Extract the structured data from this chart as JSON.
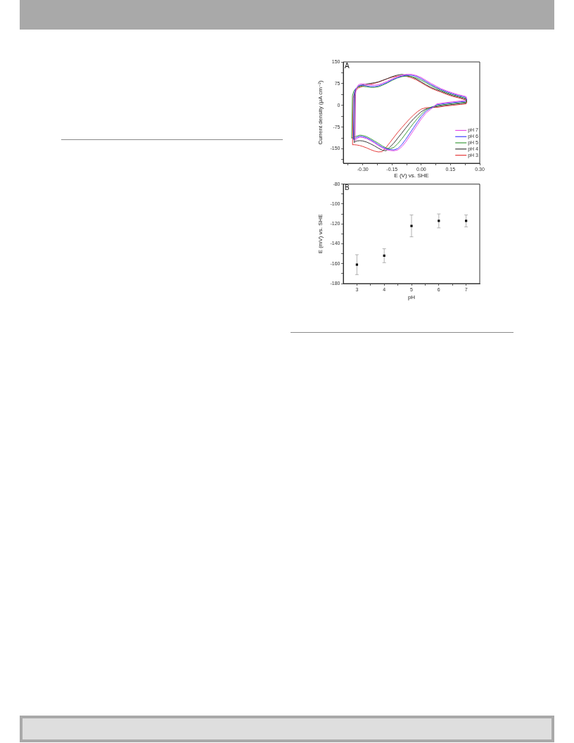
{
  "chart_data": [
    {
      "type": "line",
      "annotations": [
        "A"
      ],
      "xlabel": "E (V) vs. SHE",
      "ylabel": "Current density (μA cm⁻²)",
      "xlim": [
        -0.4,
        0.3
      ],
      "xticks": [
        {
          "value": -0.375,
          "label": null
        },
        {
          "value": -0.3,
          "label": "-0.30"
        },
        {
          "value": -0.225,
          "label": null
        },
        -0.15,
        {
          "value": -0.075,
          "label": null
        },
        {
          "value": 0,
          "label": "0.00"
        },
        {
          "value": 0.075,
          "label": null
        },
        0.15,
        {
          "value": 0.225,
          "label": null
        },
        {
          "value": 0.3,
          "label": "0.30"
        }
      ],
      "ylim": [
        -200,
        150
      ],
      "yticks": [
        {
          "value": -187.5,
          "label": null
        },
        -150,
        {
          "value": -112.5,
          "label": null
        },
        -75,
        {
          "value": -37.5,
          "label": null
        },
        0,
        {
          "value": 37.5,
          "label": null
        },
        75,
        {
          "value": 112.5,
          "label": null
        },
        150
      ],
      "legend": "bottom right",
      "marker": "none",
      "line_style": "solid",
      "series": [
        {
          "name": "pH 7",
          "color": "#e64de6",
          "x": [
            -0.339,
            -0.337,
            -0.334,
            -0.329,
            -0.322,
            -0.31,
            -0.295,
            -0.28,
            -0.26,
            -0.24,
            -0.22,
            -0.2,
            -0.175,
            -0.15,
            -0.125,
            -0.1,
            -0.075,
            -0.05,
            -0.025,
            0,
            0.025,
            0.05,
            0.075,
            0.1,
            0.13,
            0.16,
            0.19,
            0.215,
            0.23,
            0.233
          ],
          "values": [
            -121,
            37,
            55,
            63,
            71,
            74,
            74,
            72,
            70,
            70,
            71,
            76,
            83,
            91,
            98,
            104,
            107,
            107,
            103,
            96,
            86,
            76,
            67,
            58,
            50,
            43,
            37,
            33,
            30,
            22
          ]
        },
        {
          "name": "pH 6",
          "color": "#3d3dff",
          "x": [
            -0.348,
            -0.345,
            -0.34,
            -0.333,
            -0.322,
            -0.31,
            -0.295,
            -0.28,
            -0.26,
            -0.24,
            -0.22,
            -0.2,
            -0.175,
            -0.15,
            -0.125,
            -0.1,
            -0.075,
            -0.05,
            -0.025,
            0,
            0.025,
            0.05,
            0.075,
            0.1,
            0.13,
            0.16,
            0.19,
            0.215,
            0.23,
            0.233
          ],
          "values": [
            -117,
            35,
            52,
            60,
            67,
            70,
            69,
            67,
            65,
            65,
            67,
            72,
            79,
            88,
            95,
            101,
            104,
            104,
            100,
            92,
            82,
            72,
            63,
            55,
            47,
            40,
            34,
            30,
            27,
            19
          ]
        },
        {
          "name": "pH 5",
          "color": "#3c9c3c",
          "x": [
            -0.357,
            -0.353,
            -0.346,
            -0.337,
            -0.322,
            -0.31,
            -0.295,
            -0.28,
            -0.26,
            -0.24,
            -0.22,
            -0.2,
            -0.175,
            -0.15,
            -0.125,
            -0.1,
            -0.075,
            -0.05,
            -0.025,
            0,
            0.025,
            0.05,
            0.075,
            0.1,
            0.13,
            0.16,
            0.19,
            0.215,
            0.23,
            0.233
          ],
          "values": [
            -113,
            33,
            49,
            57,
            63,
            66,
            65,
            64,
            62,
            62,
            64,
            69,
            77,
            86,
            94,
            99,
            101,
            99,
            95,
            87,
            78,
            68,
            60,
            52,
            44,
            37,
            32,
            27,
            24,
            16
          ]
        },
        {
          "name": "pH 4",
          "color": "#3a3a3a",
          "x": [
            -0.3435,
            -0.341,
            -0.337,
            -0.331,
            -0.322,
            -0.31,
            -0.295,
            -0.28,
            -0.26,
            -0.24,
            -0.22,
            -0.2,
            -0.175,
            -0.15,
            -0.125,
            -0.1,
            -0.075,
            -0.05,
            -0.025,
            0,
            0.025,
            0.05,
            0.075,
            0.1,
            0.13,
            0.16,
            0.19,
            0.215,
            0.23,
            0.233
          ],
          "values": [
            -128,
            33,
            51,
            59,
            65,
            68,
            72,
            74,
            76,
            78,
            81,
            86,
            92,
            99,
            104,
            107,
            104,
            99,
            91,
            81,
            71,
            62,
            55,
            49,
            41,
            34,
            29,
            24,
            21,
            13
          ]
        },
        {
          "name": "pH 3",
          "color": "#e63c3c",
          "x": [
            -0.3525,
            -0.349,
            -0.343,
            -0.335,
            -0.322,
            -0.31,
            -0.295,
            -0.28,
            -0.26,
            -0.24,
            -0.22,
            -0.2,
            -0.175,
            -0.15,
            -0.125,
            -0.1,
            -0.075,
            -0.05,
            -0.025,
            0,
            0.025,
            0.05,
            0.075,
            0.1,
            0.13,
            0.16,
            0.19,
            0.215,
            0.23,
            0.233
          ],
          "values": [
            -136,
            25,
            42,
            52,
            60,
            63,
            67,
            70,
            73,
            76,
            80,
            85,
            92,
            97,
            101,
            101,
            100,
            95,
            88,
            78,
            68,
            59,
            52,
            46,
            38,
            31,
            26,
            21,
            18,
            10
          ]
        },
        {
          "color": "#e64de6",
          "x": [
            -0.339,
            -0.335,
            -0.33,
            -0.315,
            -0.3,
            -0.28,
            -0.26,
            -0.24,
            -0.22,
            -0.2,
            -0.18,
            -0.16,
            -0.14,
            -0.12,
            -0.1,
            -0.08,
            -0.06,
            -0.04,
            -0.02,
            0,
            0.025,
            0.05,
            0.08,
            0.12,
            0.16,
            0.2,
            0.23,
            0.233
          ],
          "values": [
            -121,
            -119,
            -114,
            -110,
            -111,
            -115,
            -122,
            -130,
            -139,
            -147,
            -153,
            -156,
            -157,
            -154,
            -143,
            -127,
            -107,
            -87,
            -67,
            -47,
            -26,
            -13,
            5,
            9,
            12,
            15,
            17,
            22
          ]
        },
        {
          "color": "#3d3dff",
          "x": [
            -0.348,
            -0.34,
            -0.33,
            -0.315,
            -0.3,
            -0.28,
            -0.26,
            -0.24,
            -0.22,
            -0.2,
            -0.18,
            -0.16,
            -0.14,
            -0.12,
            -0.1,
            -0.08,
            -0.06,
            -0.04,
            -0.02,
            0,
            0.025,
            0.05,
            0.08,
            0.12,
            0.16,
            0.2,
            0.23,
            0.233
          ],
          "values": [
            -117,
            -115,
            -110,
            -107,
            -108,
            -112,
            -119,
            -127,
            -136,
            -144,
            -150,
            -153,
            -154,
            -149,
            -136,
            -118,
            -98,
            -78,
            -58,
            -39,
            -20,
            -9,
            2,
            6,
            9,
            12,
            14,
            19
          ]
        },
        {
          "color": "#3c9c3c",
          "x": [
            -0.357,
            -0.35,
            -0.33,
            -0.315,
            -0.3,
            -0.28,
            -0.26,
            -0.24,
            -0.22,
            -0.2,
            -0.18,
            -0.16,
            -0.14,
            -0.12,
            -0.1,
            -0.08,
            -0.06,
            -0.04,
            -0.02,
            0,
            0.025,
            0.05,
            0.08,
            0.12,
            0.16,
            0.2,
            0.23,
            0.233
          ],
          "values": [
            -113,
            -111,
            -106,
            -103,
            -104,
            -108,
            -115,
            -123,
            -131,
            -140,
            -147,
            -150,
            -145,
            -132,
            -116,
            -98,
            -80,
            -62,
            -46,
            -31,
            -15,
            -6,
            -1,
            3,
            6,
            9,
            11,
            16
          ]
        },
        {
          "color": "#3a3a3a",
          "x": [
            -0.3435,
            -0.34,
            -0.33,
            -0.315,
            -0.3,
            -0.28,
            -0.26,
            -0.24,
            -0.22,
            -0.2,
            -0.18,
            -0.16,
            -0.14,
            -0.12,
            -0.1,
            -0.08,
            -0.06,
            -0.04,
            -0.02,
            0,
            0.025,
            0.08,
            0.12,
            0.16,
            0.2,
            0.23,
            0.233
          ],
          "values": [
            -128,
            -126,
            -123,
            -122,
            -123,
            -127,
            -133,
            -140,
            -148,
            -155,
            -157,
            -144,
            -130,
            -113,
            -96,
            -79,
            -62,
            -47,
            -34,
            -22,
            -12,
            -4,
            0,
            3,
            6,
            8,
            13
          ]
        },
        {
          "color": "#e63c3c",
          "x": [
            -0.3525,
            -0.345,
            -0.33,
            -0.315,
            -0.3,
            -0.28,
            -0.26,
            -0.24,
            -0.22,
            -0.2,
            -0.18,
            -0.16,
            -0.14,
            -0.12,
            -0.1,
            -0.08,
            -0.06,
            -0.04,
            -0.02,
            0,
            0.025,
            0.08,
            0.12,
            0.16,
            0.2,
            0.23,
            0.233
          ],
          "values": [
            -136,
            -136,
            -137,
            -139,
            -142,
            -147,
            -153,
            -158,
            -161,
            -160,
            -145,
            -128,
            -110,
            -93,
            -77,
            -62,
            -47,
            -34,
            -22,
            -13,
            -8,
            -7,
            -3,
            0,
            3,
            5,
            10
          ]
        }
      ]
    },
    {
      "type": "scatter",
      "annotations": [
        "B"
      ],
      "xlabel": "pH",
      "ylabel": "E (mV) vs. SHE",
      "x": [
        3,
        4,
        5,
        6,
        7
      ],
      "values": [
        -161,
        -152,
        -122,
        -117,
        -117
      ],
      "errors": [
        10,
        7,
        11,
        7,
        6
      ],
      "color": "#111111",
      "marker": "square",
      "xlim": [
        2.5,
        7.5
      ],
      "xticks": [
        3,
        {
          "value": 3.5,
          "label": null
        },
        4,
        {
          "value": 4.5,
          "label": null
        },
        5,
        {
          "value": 5.5,
          "label": null
        },
        6,
        {
          "value": 6.5,
          "label": null
        },
        7
      ],
      "ylim": [
        -180,
        -80
      ],
      "yticks": [
        -180,
        {
          "value": -170,
          "label": null
        },
        -160,
        {
          "value": -150,
          "label": null
        },
        -140,
        {
          "value": -130,
          "label": null
        },
        -120,
        {
          "value": -110,
          "label": null
        },
        -100,
        {
          "value": -90,
          "label": null
        },
        -80
      ]
    }
  ]
}
